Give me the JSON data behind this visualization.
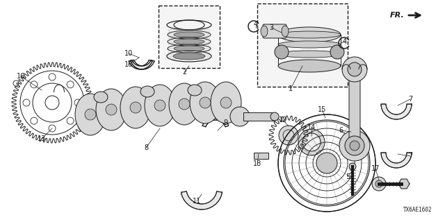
{
  "bg_color": "#ffffff",
  "line_color": "#1a1a1a",
  "diagram_code": "TX6AE1602",
  "fig_w": 6.4,
  "fig_h": 3.2,
  "dpi": 100
}
